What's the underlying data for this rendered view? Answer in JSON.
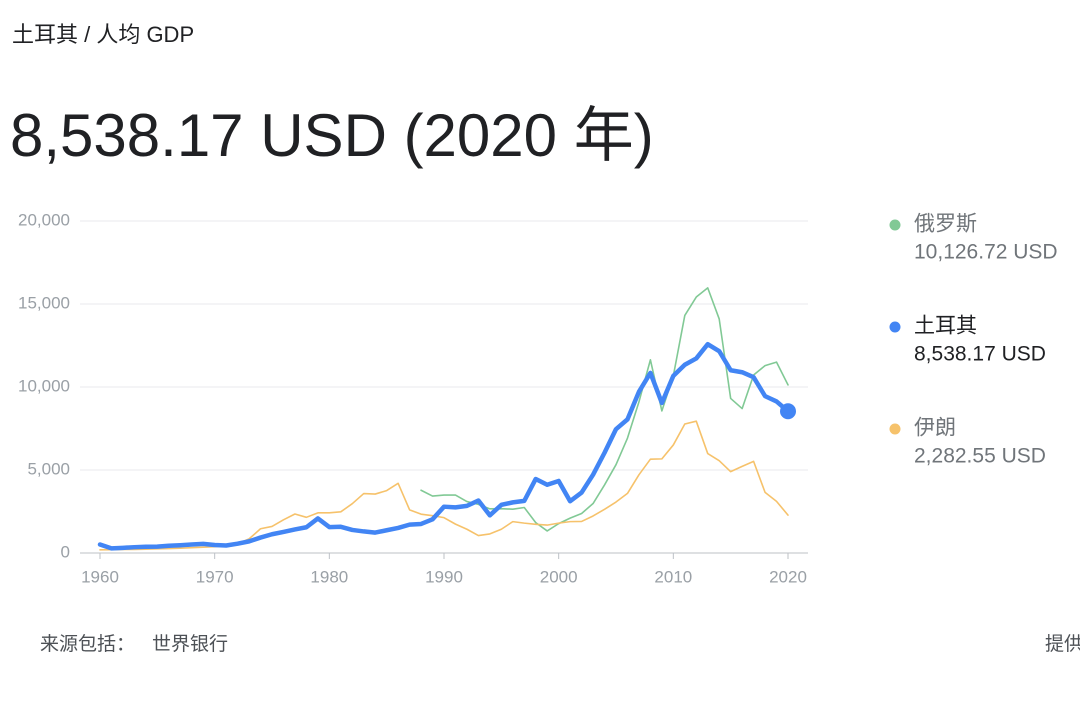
{
  "breadcrumb": "土耳其 / 人均 GDP",
  "headline": "8,538.17 USD (2020 年)",
  "footer": {
    "source_label": "来源包括：",
    "source": "世界银行",
    "provider_label": "提供"
  },
  "chart_data": {
    "type": "line",
    "x": [
      1960,
      1961,
      1962,
      1963,
      1964,
      1965,
      1966,
      1967,
      1968,
      1969,
      1970,
      1971,
      1972,
      1973,
      1974,
      1975,
      1976,
      1977,
      1978,
      1979,
      1980,
      1981,
      1982,
      1983,
      1984,
      1985,
      1986,
      1987,
      1988,
      1989,
      1990,
      1991,
      1992,
      1993,
      1994,
      1995,
      1996,
      1997,
      1998,
      1999,
      2000,
      2001,
      2002,
      2003,
      2004,
      2005,
      2006,
      2007,
      2008,
      2009,
      2010,
      2011,
      2012,
      2013,
      2014,
      2015,
      2016,
      2017,
      2018,
      2019,
      2020
    ],
    "xlim": [
      1960,
      2020
    ],
    "xticks": [
      1960,
      1970,
      1980,
      1990,
      2000,
      2010,
      2020
    ],
    "ylim": [
      0,
      20000
    ],
    "yticks": [
      0,
      {
        "value": 5000,
        "label": "5,000"
      },
      {
        "value": 10000,
        "label": "10,000"
      },
      {
        "value": 15000,
        "label": "15,000"
      },
      {
        "value": 20000,
        "label": "20,000"
      }
    ],
    "grid": true,
    "highlight": 1,
    "series": [
      {
        "name": "俄罗斯",
        "color": "#81c995",
        "latest_label": "10,126.72 USD",
        "values": [
          null,
          null,
          null,
          null,
          null,
          null,
          null,
          null,
          null,
          null,
          null,
          null,
          null,
          null,
          null,
          null,
          null,
          null,
          null,
          null,
          null,
          null,
          null,
          null,
          null,
          null,
          null,
          null,
          3780,
          3430,
          3490,
          3490,
          3100,
          2930,
          2660,
          2670,
          2640,
          2740,
          1830,
          1330,
          1770,
          2100,
          2380,
          2980,
          4100,
          5320,
          6920,
          9100,
          11640,
          8560,
          10670,
          14310,
          15420,
          15970,
          14100,
          9310,
          8700,
          10720,
          11290,
          11500,
          10126.72
        ]
      },
      {
        "name": "土耳其",
        "color": "#4285f4",
        "latest_label": "8,538.17 USD",
        "values": [
          510,
          280,
          310,
          350,
          375,
          385,
          440,
          470,
          510,
          550,
          480,
          450,
          560,
          700,
          930,
          1130,
          1270,
          1420,
          1550,
          2080,
          1560,
          1580,
          1390,
          1300,
          1230,
          1370,
          1510,
          1710,
          1750,
          2030,
          2790,
          2750,
          2840,
          3160,
          2270,
          2900,
          3050,
          3140,
          4460,
          4110,
          4340,
          3120,
          3640,
          4720,
          6040,
          7460,
          8050,
          9710,
          10850,
          9040,
          10670,
          11340,
          11720,
          12580,
          12160,
          11010,
          10890,
          10590,
          9450,
          9130,
          8538.17
        ]
      },
      {
        "name": "伊朗",
        "color": "#f6c26b",
        "latest_label": "2,282.55 USD",
        "values": [
          190,
          200,
          210,
          215,
          230,
          250,
          270,
          290,
          320,
          350,
          380,
          430,
          550,
          850,
          1460,
          1600,
          2000,
          2350,
          2150,
          2420,
          2420,
          2480,
          2970,
          3580,
          3550,
          3760,
          4200,
          2600,
          2340,
          2250,
          2130,
          1740,
          1430,
          1050,
          1150,
          1430,
          1890,
          1800,
          1730,
          1680,
          1800,
          1890,
          1900,
          2230,
          2630,
          3070,
          3590,
          4710,
          5650,
          5670,
          6510,
          7770,
          7940,
          5990,
          5560,
          4900,
          5220,
          5520,
          3650,
          3110,
          2282.55
        ]
      }
    ]
  }
}
